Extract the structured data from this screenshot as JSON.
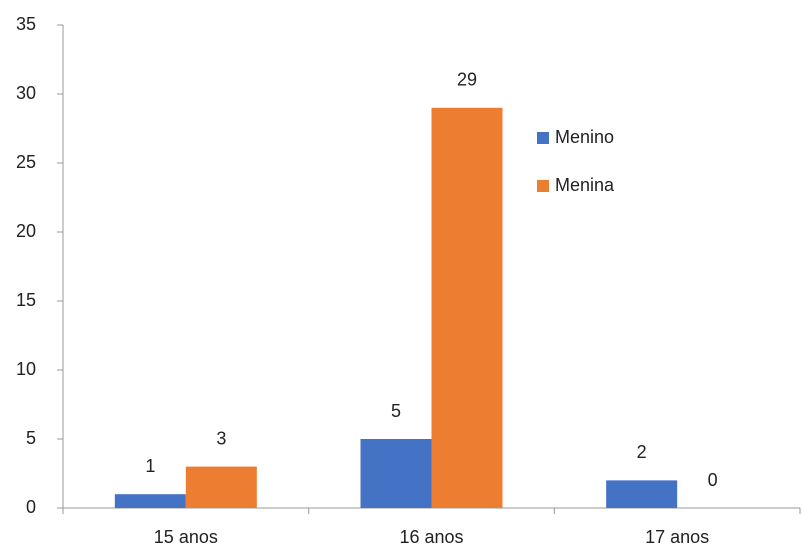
{
  "chart_data": {
    "type": "bar",
    "categories": [
      "15 anos",
      "16 anos",
      "17 anos"
    ],
    "series": [
      {
        "name": "Menino",
        "color": "#4472c4",
        "values": [
          1,
          5,
          2
        ]
      },
      {
        "name": "Menina",
        "color": "#ed7d31",
        "values": [
          3,
          29,
          0
        ]
      }
    ],
    "ylim": [
      0,
      35
    ],
    "yticks": [
      0,
      5,
      10,
      15,
      20,
      25,
      30,
      35
    ],
    "grid": false
  }
}
